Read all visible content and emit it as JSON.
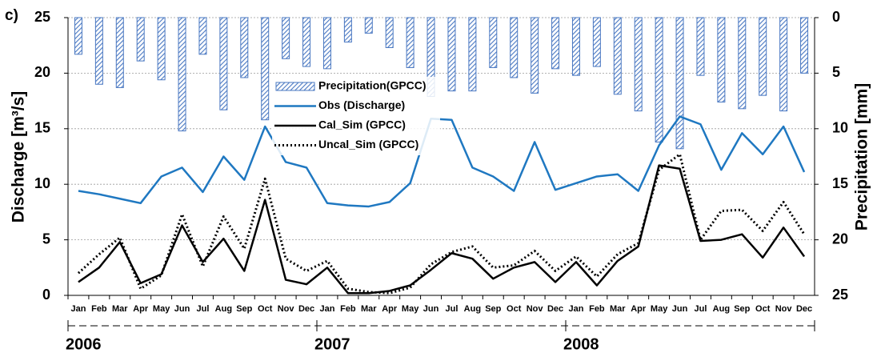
{
  "chart_data": {
    "type": "combo",
    "panel_label": "c)",
    "y_label": "Discharge [m³/s]",
    "y2_label": "Precipitation [mm]",
    "categories": [
      "Jan",
      "Feb",
      "Mar",
      "Apr",
      "May",
      "Jun",
      "Jul",
      "Aug",
      "Sep",
      "Oct",
      "Nov",
      "Dec",
      "Jan",
      "Feb",
      "Mar",
      "Apr",
      "May",
      "Jun",
      "Jul",
      "Aug",
      "Sep",
      "Oct",
      "Nov",
      "Dec",
      "Jan",
      "Feb",
      "Mar",
      "Apr",
      "May",
      "Jun",
      "Jul",
      "Aug",
      "Sep",
      "Oct",
      "Nov",
      "Dec"
    ],
    "year_groups": [
      "2006",
      "2007",
      "2008"
    ],
    "ylim": [
      0,
      25
    ],
    "yticks": [
      0,
      5,
      10,
      15,
      20,
      25
    ],
    "y2lim": [
      0,
      25
    ],
    "y2ticks": [
      0,
      5,
      10,
      15,
      20,
      25
    ],
    "y2_inverted": true,
    "grid": true,
    "series": [
      {
        "name": "Precipitation(GPCC)",
        "kind": "bar",
        "axis": "y2",
        "color": "#4a78c2",
        "values": [
          3.3,
          6.0,
          6.3,
          3.9,
          5.6,
          10.2,
          3.3,
          8.3,
          5.4,
          9.2,
          3.7,
          4.4,
          4.6,
          2.2,
          1.4,
          2.7,
          4.5,
          7.1,
          6.6,
          6.6,
          4.5,
          5.4,
          6.8,
          4.6,
          5.2,
          4.4,
          6.9,
          8.4,
          11.2,
          11.8,
          5.2,
          7.6,
          8.2,
          7.0,
          8.4,
          5.0
        ]
      },
      {
        "name": "Obs (Discharge)",
        "kind": "line",
        "line_style": "solid",
        "color": "#1f78c1",
        "values": [
          9.4,
          9.1,
          8.7,
          8.3,
          10.7,
          11.5,
          9.3,
          12.5,
          10.4,
          15.2,
          12.0,
          11.5,
          8.3,
          8.1,
          8.0,
          8.4,
          10.1,
          15.9,
          15.8,
          11.5,
          10.7,
          9.4,
          13.8,
          9.5,
          10.1,
          10.7,
          10.9,
          9.4,
          13.5,
          16.1,
          15.4,
          11.3,
          14.6,
          12.7,
          15.2,
          11.1
        ]
      },
      {
        "name": "Cal_Sim (GPCC)",
        "kind": "line",
        "line_style": "solid",
        "color": "#000000",
        "values": [
          1.2,
          2.5,
          4.8,
          1.1,
          1.9,
          6.3,
          3.0,
          5.1,
          2.2,
          8.6,
          1.4,
          1.0,
          2.5,
          0.2,
          0.2,
          0.4,
          0.9,
          2.3,
          3.8,
          3.3,
          1.5,
          2.5,
          3.0,
          1.2,
          3.0,
          0.9,
          3.1,
          4.4,
          11.7,
          11.4,
          4.9,
          5.0,
          5.5,
          3.4,
          6.1,
          3.5
        ]
      },
      {
        "name": "Uncal_Sim (GPCC)",
        "kind": "line",
        "line_style": "dotted",
        "color": "#000000",
        "values": [
          2.0,
          3.7,
          5.2,
          0.6,
          1.8,
          7.3,
          2.6,
          7.1,
          4.2,
          10.5,
          3.3,
          2.2,
          3.1,
          0.6,
          0.3,
          0.2,
          0.7,
          2.8,
          3.9,
          4.4,
          2.5,
          2.7,
          4.0,
          2.2,
          3.5,
          1.7,
          3.7,
          4.7,
          11.3,
          12.7,
          5.0,
          7.6,
          7.7,
          5.8,
          8.4,
          5.5
        ]
      }
    ]
  }
}
